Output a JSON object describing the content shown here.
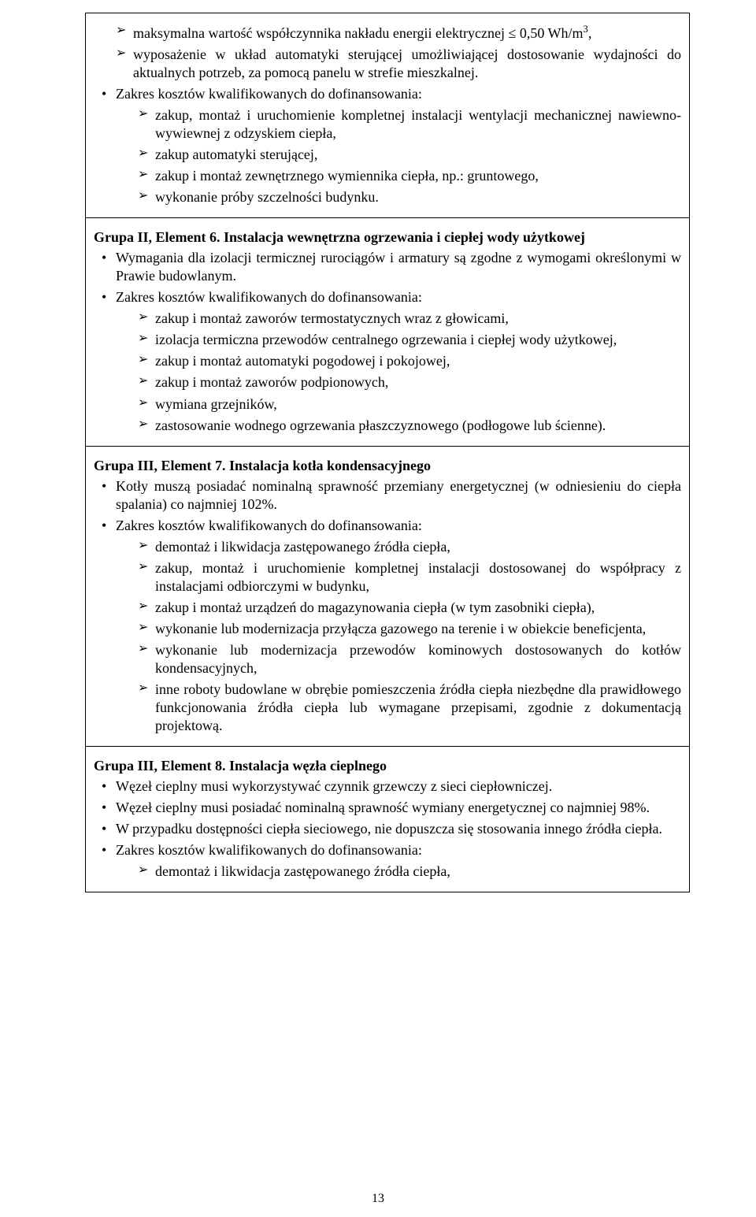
{
  "pageNumber": "13",
  "cells": [
    {
      "introArrows": [
        "maksymalna wartość współczynnika nakładu energii elektrycznej ≤ 0,50 Wh/m³,",
        "wyposażenie w układ automatyki sterującej umożliwiającej dostosowanie wydajności do aktualnych potrzeb, za pomocą panelu w strefie mieszkalnej."
      ],
      "bullets": [
        {
          "text": "Zakres kosztów kwalifikowanych do dofinansowania:",
          "arrows": [
            "zakup, montaż i uruchomienie kompletnej instalacji wentylacji mechanicznej nawiewno-wywiewnej z odzyskiem ciepła,",
            "zakup automatyki sterującej,",
            "zakup i montaż zewnętrznego wymiennika ciepła, np.: gruntowego,",
            "wykonanie próby szczelności budynku."
          ]
        }
      ]
    },
    {
      "title": "Grupa II, Element 6. Instalacja wewnętrzna ogrzewania i ciepłej wody użytkowej",
      "bullets": [
        {
          "text": "Wymagania dla izolacji termicznej rurociągów i armatury są zgodne z wymogami określonymi w Prawie budowlanym."
        },
        {
          "text": "Zakres kosztów kwalifikowanych do dofinansowania:",
          "arrows": [
            "zakup i montaż zaworów termostatycznych wraz z głowicami,",
            "izolacja termiczna przewodów centralnego ogrzewania i ciepłej wody użytkowej,",
            "zakup i montaż automatyki pogodowej i pokojowej,",
            "zakup i montaż zaworów podpionowych,",
            "wymiana grzejników,",
            "zastosowanie wodnego ogrzewania płaszczyznowego (podłogowe lub ścienne)."
          ]
        }
      ]
    },
    {
      "title": "Grupa III, Element 7. Instalacja kotła kondensacyjnego",
      "bullets": [
        {
          "text": "Kotły muszą posiadać nominalną sprawność przemiany energetycznej (w odniesieniu do ciepła spalania) co najmniej 102%."
        },
        {
          "text": "Zakres kosztów kwalifikowanych do dofinansowania:",
          "arrows": [
            "demontaż i likwidacja zastępowanego źródła ciepła,",
            "zakup, montaż i uruchomienie kompletnej instalacji dostosowanej do współpracy z instalacjami odbiorczymi w budynku,",
            "zakup i montaż urządzeń do magazynowania ciepła (w tym zasobniki ciepła),",
            "wykonanie lub modernizacja przyłącza gazowego na terenie i w obiekcie beneficjenta,",
            "wykonanie lub modernizacja przewodów kominowych dostosowanych do kotłów kondensacyjnych,",
            "inne roboty budowlane w obrębie pomieszczenia źródła ciepła niezbędne dla prawidłowego funkcjonowania źródła ciepła lub wymagane przepisami, zgodnie z dokumentacją projektową."
          ]
        }
      ]
    },
    {
      "title": "Grupa III, Element 8. Instalacja węzła cieplnego",
      "bullets": [
        {
          "text": "Węzeł cieplny musi wykorzystywać czynnik grzewczy z sieci ciepłowniczej."
        },
        {
          "text": "Węzeł cieplny musi posiadać nominalną sprawność wymiany energetycznej co najmniej 98%."
        },
        {
          "text": "W przypadku dostępności ciepła sieciowego, nie dopuszcza się stosowania innego źródła ciepła."
        },
        {
          "text": "Zakres kosztów kwalifikowanych do dofinansowania:",
          "arrows": [
            "demontaż i likwidacja zastępowanego źródła ciepła,"
          ]
        }
      ]
    }
  ]
}
